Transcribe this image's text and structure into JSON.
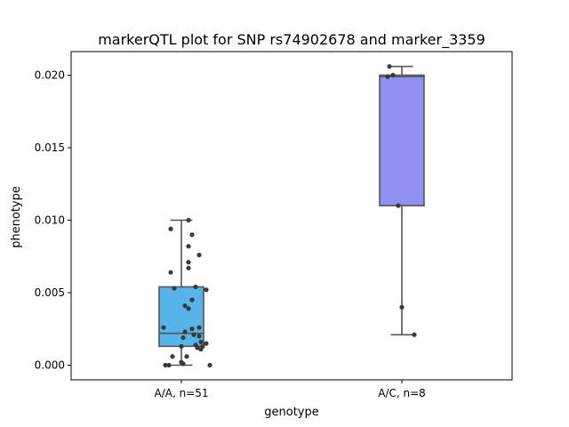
{
  "chart_data": {
    "type": "box",
    "title": "markerQTL plot for SNP rs74902678 and marker_3359",
    "xlabel": "genotype",
    "ylabel": "phenotype",
    "ylim": [
      -0.001,
      0.0216
    ],
    "yticks": [
      "0.000",
      "0.005",
      "0.010",
      "0.015",
      "0.020"
    ],
    "categories": [
      "A/A, n=51",
      "A/C, n=8"
    ],
    "colors": {
      "box_aa": "#56b4e9",
      "box_ac": "#9090f2",
      "points": "#3a3a3a",
      "lines": "#555555"
    },
    "boxes": [
      {
        "category": "A/A, n=51",
        "q1": 0.0013,
        "median": 0.0022,
        "q3": 0.0054,
        "whisker_low": 0.0,
        "whisker_high": 0.01
      },
      {
        "category": "A/C, n=8",
        "q1": 0.011,
        "median": 0.0199,
        "q3": 0.02,
        "whisker_low": 0.0021,
        "whisker_high": 0.0206
      }
    ],
    "points": [
      {
        "category": "A/A, n=51",
        "values": [
          0.0094,
          0.01,
          0.009,
          0.0082,
          0.0076,
          0.0071,
          0.0067,
          0.0064,
          0.0054,
          0.0053,
          0.0052,
          0.0045,
          0.0041,
          0.0039,
          0.0026,
          0.0026,
          0.0025,
          0.0023,
          0.0021,
          0.002,
          0.0019,
          0.0016,
          0.0015,
          0.0014,
          0.0013,
          0.0013,
          0.0012,
          0.0011,
          0.0006,
          0.0006,
          0.0002,
          0.0001,
          0.0,
          0.0,
          0.0
        ],
        "jitter": [
          -0.6,
          0.4,
          0.6,
          0.4,
          1.0,
          0.4,
          0.4,
          -0.6,
          0.8,
          -0.4,
          1.4,
          0.6,
          0.2,
          0.4,
          -1.0,
          1.0,
          0.6,
          0.2,
          0.7,
          1.0,
          0.1,
          1.1,
          1.4,
          0.8,
          1.2,
          0.0,
          0.9,
          1.1,
          -0.5,
          0.3,
          0.0,
          0.1,
          -0.9,
          -0.7,
          1.6
        ]
      },
      {
        "category": "A/C, n=8",
        "values": [
          0.0206,
          0.02,
          0.0199,
          0.011,
          0.004,
          0.0021
        ],
        "jitter": [
          -0.7,
          -0.5,
          -0.8,
          -0.2,
          0.0,
          0.7
        ]
      }
    ]
  }
}
